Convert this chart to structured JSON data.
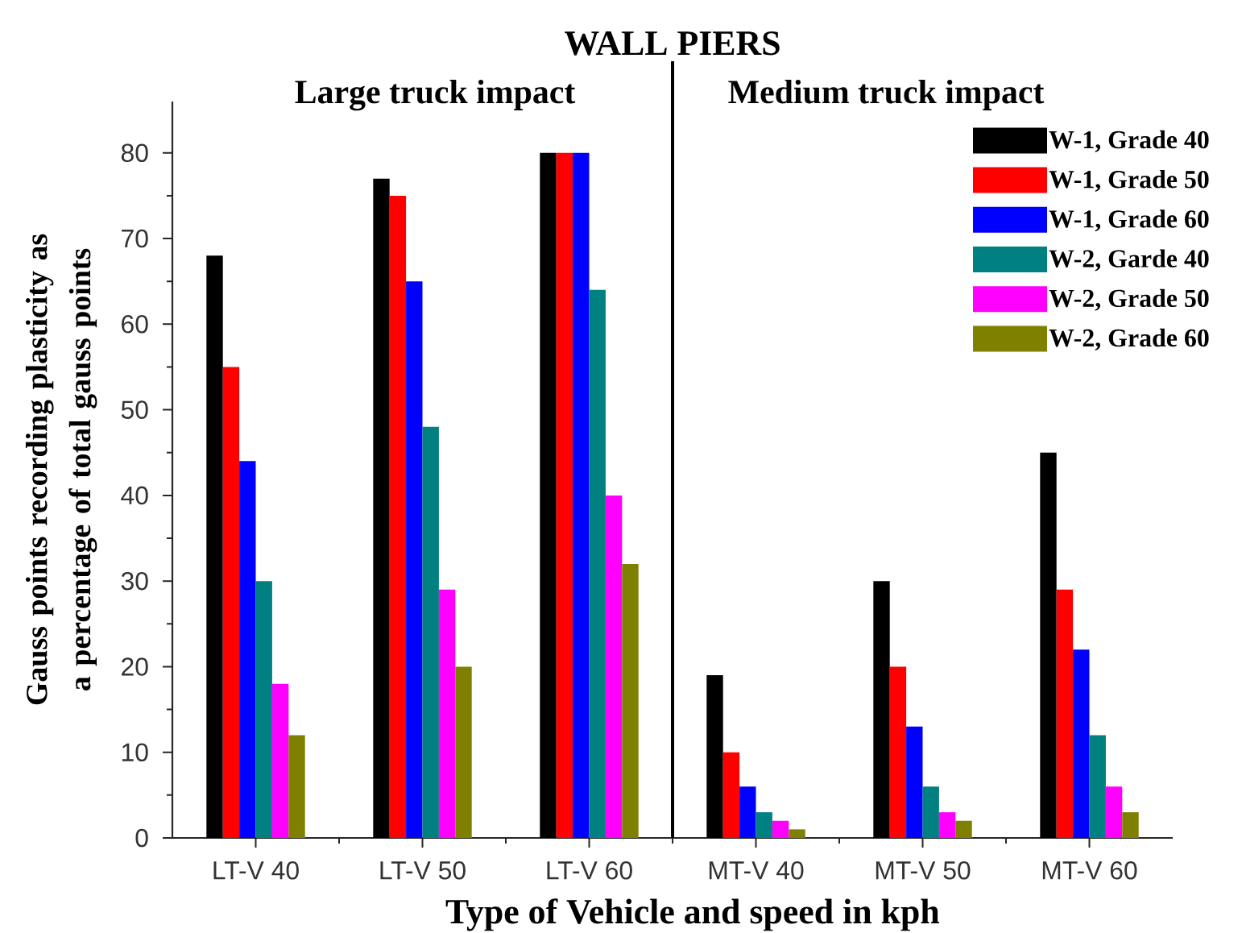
{
  "chart_data": {
    "type": "bar",
    "title": "WALL PIERS",
    "xlabel": "Type of Vehicle and speed in kph",
    "ylabel": "Gauss points recording plasticity as a percentage of total gauss points",
    "annotations": [
      "Large truck impact",
      "Medium truck impact"
    ],
    "categories": [
      "LT-V 40",
      "LT-V 50",
      "LT-V 60",
      "MT-V 40",
      "MT-V 50",
      "MT-V 60"
    ],
    "series": [
      {
        "name": "W-1, Grade 40",
        "color": "#000000",
        "values": [
          68,
          77,
          80,
          19,
          30,
          45
        ]
      },
      {
        "name": "W-1, Grade 50",
        "color": "#ff0000",
        "values": [
          55,
          75,
          80,
          10,
          20,
          29
        ]
      },
      {
        "name": "W-1, Grade 60",
        "color": "#0000ff",
        "values": [
          44,
          65,
          80,
          6,
          13,
          22
        ]
      },
      {
        "name": "W-2, Garde 40",
        "color": "#008080",
        "values": [
          30,
          48,
          64,
          3,
          6,
          12
        ]
      },
      {
        "name": "W-2, Grade 50",
        "color": "#ff00ff",
        "values": [
          18,
          29,
          40,
          2,
          3,
          6
        ]
      },
      {
        "name": "W-2, Grade 60",
        "color": "#808000",
        "values": [
          12,
          20,
          32,
          1,
          2,
          3
        ]
      }
    ],
    "ylim": [
      0,
      86
    ],
    "yticks": [
      0,
      10,
      20,
      30,
      40,
      50,
      60,
      70,
      80
    ],
    "legend": "top right"
  }
}
